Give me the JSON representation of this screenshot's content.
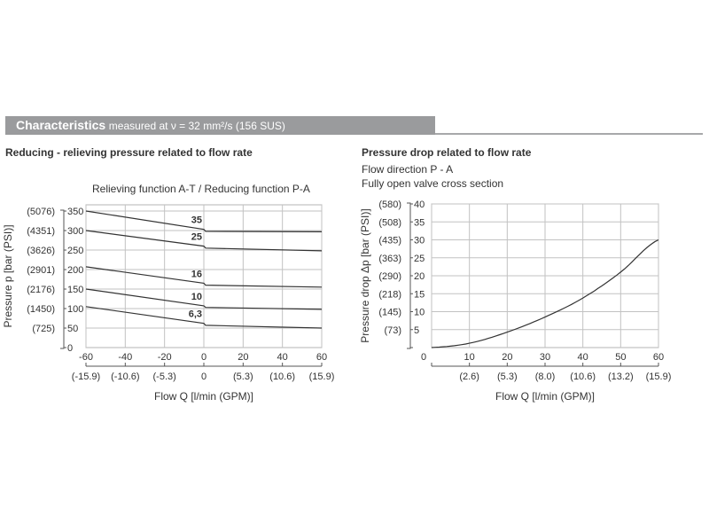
{
  "header": {
    "title": "Characteristics",
    "subtitle": "measured at ν = 32 mm²/s (156 SUS)"
  },
  "left_section": {
    "title": "Reducing - relieving pressure related to flow rate",
    "function_label": "Relieving function A-T   /   Reducing function P-A"
  },
  "right_section": {
    "title": "Pressure drop related to flow rate",
    "line1": "Flow direction P - A",
    "line2": "Fully open valve cross section"
  },
  "chart_data": [
    {
      "type": "line",
      "title": "Reducing - relieving pressure related to flow rate",
      "subtitle": "Relieving function A-T / Reducing function P-A",
      "xlabel": "Flow Q [l/min (GPM)]",
      "ylabel": "Pressure p [bar (PSI)]",
      "xlim": [
        -60,
        60
      ],
      "ylim": [
        0,
        350
      ],
      "grid": true,
      "x_ticks": [
        "-60",
        "-40",
        "-20",
        "0",
        "20",
        "40",
        "60"
      ],
      "x_ticks_secondary": [
        "(-15.9)",
        "(-10.6)",
        "(-5.3)",
        "0",
        "(5.3)",
        "(10.6)",
        "(15.9)"
      ],
      "y_ticks": [
        "0",
        "50",
        "100",
        "150",
        "200",
        "250",
        "300",
        "350"
      ],
      "y_ticks_secondary": [
        "",
        "(725)",
        "(1450)",
        "(2176)",
        "(2901)",
        "(3626)",
        "(4351)",
        "(5076)"
      ],
      "series": [
        {
          "name": "35",
          "x": [
            -60,
            0,
            0,
            60
          ],
          "values": [
            350,
            303,
            298,
            297
          ]
        },
        {
          "name": "25",
          "x": [
            -60,
            0,
            0,
            60
          ],
          "values": [
            300,
            260,
            255,
            248
          ]
        },
        {
          "name": "16",
          "x": [
            -60,
            0,
            0,
            60
          ],
          "values": [
            207,
            165,
            160,
            155
          ]
        },
        {
          "name": "10",
          "x": [
            -60,
            0,
            0,
            60
          ],
          "values": [
            150,
            107,
            103,
            98
          ]
        },
        {
          "name": "6,3",
          "x": [
            -60,
            0,
            0,
            60
          ],
          "values": [
            105,
            62,
            57,
            50
          ]
        }
      ]
    },
    {
      "type": "line",
      "title": "Pressure drop related to flow rate",
      "subtitle": "Flow direction P - A; Fully open valve cross section",
      "xlabel": "Flow Q [l/min (GPM)]",
      "ylabel": "Pressure drop Δp [bar (PSI)]",
      "xlim": [
        0,
        60
      ],
      "ylim": [
        0,
        40
      ],
      "grid": true,
      "x_ticks": [
        "0",
        "10",
        "20",
        "30",
        "40",
        "50",
        "60"
      ],
      "x_ticks_secondary": [
        "",
        "(2.6)",
        "(5.3)",
        "(8.0)",
        "(10.6)",
        "(13.2)",
        "(15.9)"
      ],
      "y_ticks": [
        "",
        "5",
        "10",
        "15",
        "20",
        "25",
        "30",
        "35",
        "40"
      ],
      "y_ticks_secondary": [
        "",
        "(73)",
        "(145)",
        "(218)",
        "(290)",
        "(363)",
        "(435)",
        "(508)",
        "(580)"
      ],
      "series": [
        {
          "name": "Δp",
          "x": [
            0,
            10,
            20,
            30,
            40,
            50,
            60
          ],
          "values": [
            0,
            1.2,
            4.3,
            8.5,
            13.8,
            21,
            30
          ]
        }
      ]
    }
  ]
}
